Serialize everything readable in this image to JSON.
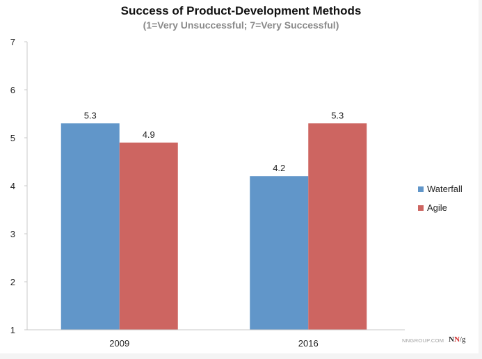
{
  "chart_data": {
    "type": "bar",
    "title": "Success of Product-Development Methods",
    "subtitle": "(1=Very Unsuccessful; 7=Very Successful)",
    "xlabel": "",
    "ylabel": "",
    "categories": [
      "2009",
      "2016"
    ],
    "series": [
      {
        "name": "Waterfall",
        "color": "#6196c9",
        "values": [
          5.3,
          4.2
        ]
      },
      {
        "name": "Agile",
        "color": "#cd6561",
        "values": [
          4.9,
          5.3
        ]
      }
    ],
    "data_labels": [
      [
        "5.3",
        "4.2"
      ],
      [
        "4.9",
        "5.3"
      ]
    ],
    "ylim": [
      1,
      7
    ],
    "yticks": [
      "1",
      "2",
      "3",
      "4",
      "5",
      "6",
      "7"
    ],
    "grid": false,
    "legend_position": "right"
  },
  "footer": {
    "watermark": "NNGROUP.COM",
    "logo_n1": "N",
    "logo_n2": "N",
    "logo_g": "/g"
  }
}
